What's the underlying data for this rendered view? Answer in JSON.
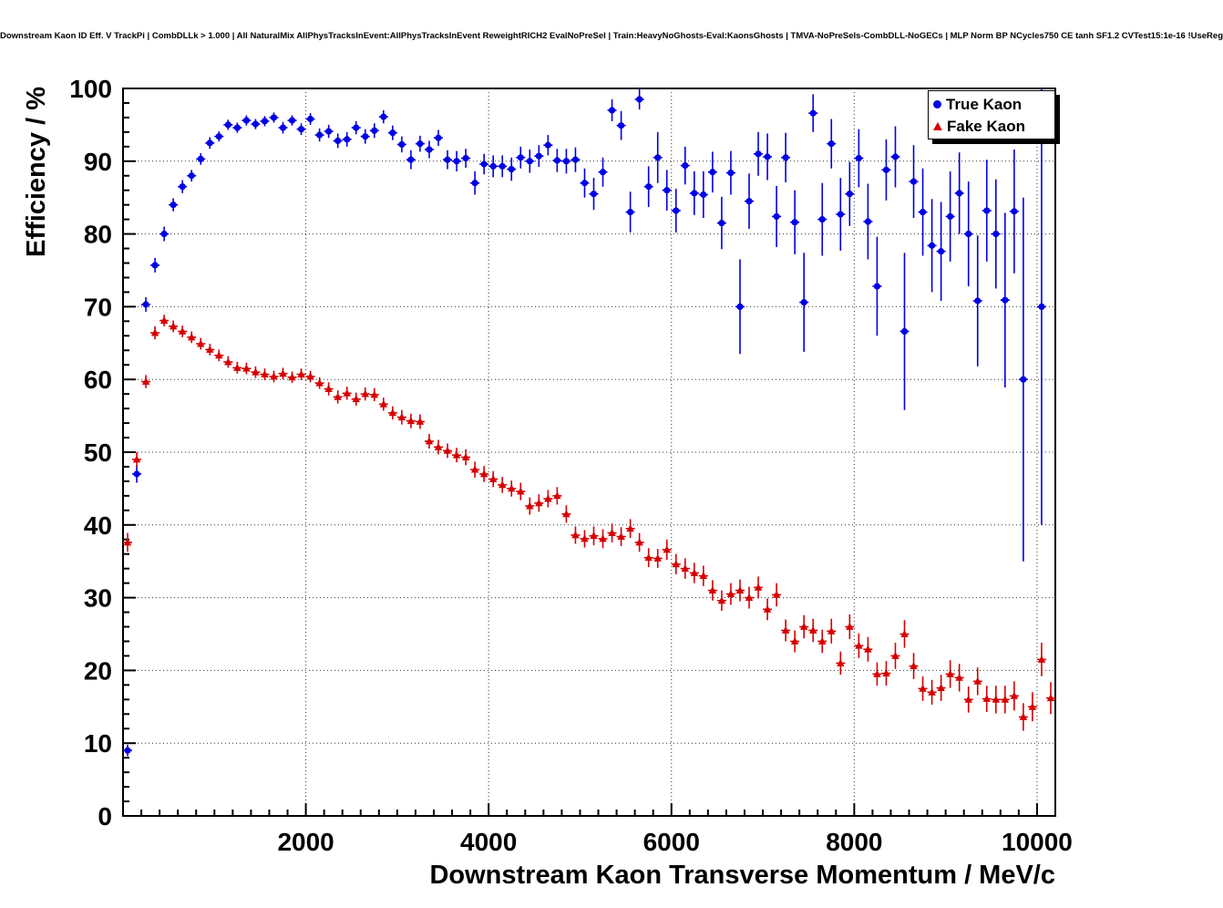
{
  "chart_data": {
    "type": "scatter",
    "title": "Downstream Kaon ID Eff. V TrackPi | CombDLLk > 1.000 | All NaturalMix AllPhysTracksInEvent:AllPhysTracksInEvent ReweightRICH2 EvalNoPreSel | Train:HeavyNoGhosts-Eval:KaonsGhosts | TMVA-NoPreSels-CombDLL-NoGECs | MLP Norm BP NCycles750 CE tanh SF1.2 CVTest15:1e-16 !UseReg",
    "xlabel": "Downstream Kaon Transverse Momentum / MeV/c",
    "ylabel": "Efficiency / %",
    "xlim": [
      0,
      10200
    ],
    "ylim": [
      0,
      100
    ],
    "x_ticks": [
      2000,
      4000,
      6000,
      8000,
      10000
    ],
    "y_ticks": [
      0,
      10,
      20,
      30,
      40,
      50,
      60,
      70,
      80,
      90,
      100
    ],
    "grid": true,
    "legend_position": "top-right",
    "series": [
      {
        "name": "True Kaon",
        "color": "#0000e6",
        "marker": "circle",
        "points": [
          [
            50,
            9.0,
            0.8
          ],
          [
            150,
            47.0,
            1.2
          ],
          [
            250,
            70.3,
            1.0
          ],
          [
            350,
            75.7,
            1.0
          ],
          [
            450,
            80.0,
            1.0
          ],
          [
            550,
            84.0,
            0.9
          ],
          [
            650,
            86.5,
            0.9
          ],
          [
            750,
            88.0,
            0.8
          ],
          [
            850,
            90.3,
            0.8
          ],
          [
            950,
            92.5,
            0.8
          ],
          [
            1050,
            93.4,
            0.7
          ],
          [
            1150,
            95.0,
            0.7
          ],
          [
            1250,
            94.6,
            0.7
          ],
          [
            1350,
            95.6,
            0.7
          ],
          [
            1450,
            95.1,
            0.7
          ],
          [
            1550,
            95.5,
            0.7
          ],
          [
            1650,
            96.0,
            0.7
          ],
          [
            1750,
            94.6,
            0.8
          ],
          [
            1850,
            95.6,
            0.7
          ],
          [
            1950,
            94.4,
            0.8
          ],
          [
            2050,
            95.8,
            0.8
          ],
          [
            2150,
            93.6,
            0.9
          ],
          [
            2250,
            94.1,
            0.9
          ],
          [
            2350,
            92.8,
            1.0
          ],
          [
            2450,
            93.0,
            1.0
          ],
          [
            2550,
            94.6,
            0.9
          ],
          [
            2650,
            93.4,
            1.0
          ],
          [
            2750,
            94.2,
            1.0
          ],
          [
            2850,
            96.1,
            0.9
          ],
          [
            2950,
            93.9,
            1.0
          ],
          [
            3050,
            92.3,
            1.1
          ],
          [
            3150,
            90.2,
            1.3
          ],
          [
            3250,
            92.4,
            1.1
          ],
          [
            3350,
            91.6,
            1.2
          ],
          [
            3450,
            93.2,
            1.1
          ],
          [
            3550,
            90.2,
            1.3
          ],
          [
            3650,
            90.0,
            1.4
          ],
          [
            3750,
            90.4,
            1.3
          ],
          [
            3850,
            87.0,
            1.6
          ],
          [
            3950,
            89.6,
            1.4
          ],
          [
            4050,
            89.3,
            1.5
          ],
          [
            4150,
            89.3,
            1.5
          ],
          [
            4250,
            88.9,
            1.6
          ],
          [
            4350,
            90.5,
            1.5
          ],
          [
            4450,
            90.0,
            1.6
          ],
          [
            4550,
            90.7,
            1.5
          ],
          [
            4650,
            92.2,
            1.4
          ],
          [
            4750,
            90.1,
            1.6
          ],
          [
            4850,
            90.0,
            1.7
          ],
          [
            4950,
            90.2,
            1.7
          ],
          [
            5050,
            87.0,
            2.0
          ],
          [
            5150,
            85.5,
            2.2
          ],
          [
            5250,
            88.5,
            2.0
          ],
          [
            5350,
            97.0,
            1.5
          ],
          [
            5450,
            94.9,
            2.0
          ],
          [
            5550,
            83.0,
            2.8
          ],
          [
            5650,
            98.5,
            1.4
          ],
          [
            5750,
            86.5,
            2.8
          ],
          [
            5850,
            90.5,
            3.5
          ],
          [
            5950,
            86.0,
            2.8
          ],
          [
            6050,
            83.2,
            3.0
          ],
          [
            6150,
            89.4,
            2.6
          ],
          [
            6250,
            85.6,
            3.0
          ],
          [
            6350,
            85.4,
            3.2
          ],
          [
            6450,
            88.5,
            2.8
          ],
          [
            6550,
            81.5,
            3.6
          ],
          [
            6650,
            88.4,
            3.0
          ],
          [
            6750,
            70.0,
            6.5
          ],
          [
            6850,
            84.5,
            3.8
          ],
          [
            6950,
            91.0,
            3.0
          ],
          [
            7050,
            90.6,
            3.2
          ],
          [
            7150,
            82.4,
            4.2
          ],
          [
            7250,
            90.5,
            3.4
          ],
          [
            7350,
            81.6,
            4.4
          ],
          [
            7450,
            70.6,
            6.8
          ],
          [
            7550,
            96.6,
            2.6
          ],
          [
            7650,
            82.0,
            5.0
          ],
          [
            7750,
            92.4,
            3.4
          ],
          [
            7850,
            82.7,
            5.0
          ],
          [
            7950,
            85.5,
            4.4
          ],
          [
            8050,
            90.4,
            4.0
          ],
          [
            8150,
            81.7,
            5.2
          ],
          [
            8250,
            72.8,
            6.8
          ],
          [
            8350,
            88.8,
            4.2
          ],
          [
            8450,
            90.6,
            4.2
          ],
          [
            8550,
            66.6,
            10.8
          ],
          [
            8650,
            87.2,
            5.0
          ],
          [
            8750,
            83.0,
            6.0
          ],
          [
            8850,
            78.4,
            6.4
          ],
          [
            8950,
            77.6,
            6.8
          ],
          [
            9050,
            82.4,
            6.2
          ],
          [
            9150,
            85.6,
            5.6
          ],
          [
            9250,
            80.0,
            7.2
          ],
          [
            9350,
            70.8,
            9.0
          ],
          [
            9450,
            83.2,
            7.0
          ],
          [
            9550,
            80.0,
            7.5
          ],
          [
            9650,
            70.9,
            12.0
          ],
          [
            9750,
            83.1,
            8.5
          ],
          [
            9850,
            60.0,
            25.0
          ],
          [
            10050,
            70.0,
            30.0
          ]
        ]
      },
      {
        "name": "Fake Kaon",
        "color": "#d60000",
        "marker": "triangle",
        "points": [
          [
            50,
            37.6,
            1.3
          ],
          [
            150,
            49.0,
            1.0
          ],
          [
            250,
            59.7,
            0.9
          ],
          [
            350,
            66.4,
            0.9
          ],
          [
            450,
            68.1,
            0.8
          ],
          [
            550,
            67.3,
            0.8
          ],
          [
            650,
            66.6,
            0.8
          ],
          [
            750,
            65.8,
            0.8
          ],
          [
            850,
            64.9,
            0.8
          ],
          [
            950,
            64.1,
            0.8
          ],
          [
            1050,
            63.3,
            0.8
          ],
          [
            1150,
            62.4,
            0.8
          ],
          [
            1250,
            61.6,
            0.8
          ],
          [
            1350,
            61.5,
            0.8
          ],
          [
            1450,
            61.0,
            0.8
          ],
          [
            1550,
            60.7,
            0.8
          ],
          [
            1650,
            60.4,
            0.8
          ],
          [
            1750,
            60.8,
            0.8
          ],
          [
            1850,
            60.3,
            0.8
          ],
          [
            1950,
            60.7,
            0.8
          ],
          [
            2050,
            60.4,
            0.8
          ],
          [
            2150,
            59.5,
            0.8
          ],
          [
            2250,
            58.7,
            0.9
          ],
          [
            2350,
            57.6,
            0.9
          ],
          [
            2450,
            58.1,
            0.9
          ],
          [
            2550,
            57.3,
            0.9
          ],
          [
            2650,
            58.0,
            0.9
          ],
          [
            2750,
            57.9,
            0.9
          ],
          [
            2850,
            56.6,
            0.9
          ],
          [
            2950,
            55.4,
            0.9
          ],
          [
            3050,
            54.8,
            1.0
          ],
          [
            3150,
            54.3,
            1.0
          ],
          [
            3250,
            54.2,
            1.0
          ],
          [
            3350,
            51.5,
            1.0
          ],
          [
            3450,
            50.7,
            1.0
          ],
          [
            3550,
            50.2,
            1.0
          ],
          [
            3650,
            49.6,
            1.0
          ],
          [
            3750,
            49.3,
            1.1
          ],
          [
            3850,
            47.6,
            1.1
          ],
          [
            3950,
            47.0,
            1.1
          ],
          [
            4050,
            46.3,
            1.1
          ],
          [
            4150,
            45.5,
            1.1
          ],
          [
            4250,
            45.0,
            1.1
          ],
          [
            4350,
            44.6,
            1.2
          ],
          [
            4450,
            42.6,
            1.2
          ],
          [
            4550,
            43.0,
            1.2
          ],
          [
            4650,
            43.6,
            1.2
          ],
          [
            4750,
            44.0,
            1.2
          ],
          [
            4850,
            41.5,
            1.2
          ],
          [
            4950,
            38.6,
            1.2
          ],
          [
            5050,
            38.1,
            1.2
          ],
          [
            5150,
            38.5,
            1.3
          ],
          [
            5250,
            38.1,
            1.3
          ],
          [
            5350,
            38.9,
            1.3
          ],
          [
            5450,
            38.4,
            1.3
          ],
          [
            5550,
            39.5,
            1.3
          ],
          [
            5650,
            37.6,
            1.3
          ],
          [
            5750,
            35.5,
            1.3
          ],
          [
            5850,
            35.4,
            1.3
          ],
          [
            5950,
            36.6,
            1.4
          ],
          [
            6050,
            34.6,
            1.4
          ],
          [
            6150,
            34.0,
            1.4
          ],
          [
            6250,
            33.4,
            1.4
          ],
          [
            6350,
            33.0,
            1.4
          ],
          [
            6450,
            31.0,
            1.4
          ],
          [
            6550,
            29.6,
            1.4
          ],
          [
            6650,
            30.5,
            1.5
          ],
          [
            6750,
            31.0,
            1.5
          ],
          [
            6850,
            30.0,
            1.5
          ],
          [
            6950,
            31.4,
            1.5
          ],
          [
            7050,
            28.4,
            1.5
          ],
          [
            7150,
            30.4,
            1.6
          ],
          [
            7250,
            25.5,
            1.5
          ],
          [
            7350,
            24.0,
            1.5
          ],
          [
            7450,
            26.0,
            1.6
          ],
          [
            7550,
            25.5,
            1.6
          ],
          [
            7650,
            24.0,
            1.6
          ],
          [
            7750,
            25.4,
            1.7
          ],
          [
            7850,
            21.0,
            1.6
          ],
          [
            7950,
            26.0,
            1.7
          ],
          [
            8050,
            23.4,
            1.7
          ],
          [
            8150,
            22.9,
            1.7
          ],
          [
            8250,
            19.5,
            1.6
          ],
          [
            8350,
            19.6,
            1.7
          ],
          [
            8450,
            22.0,
            1.8
          ],
          [
            8550,
            25.0,
            1.9
          ],
          [
            8650,
            20.6,
            1.8
          ],
          [
            8750,
            17.5,
            1.7
          ],
          [
            8850,
            17.0,
            1.7
          ],
          [
            8950,
            17.6,
            1.8
          ],
          [
            9050,
            19.5,
            1.9
          ],
          [
            9150,
            19.0,
            1.9
          ],
          [
            9250,
            16.0,
            1.8
          ],
          [
            9350,
            18.5,
            1.9
          ],
          [
            9450,
            16.1,
            1.8
          ],
          [
            9550,
            16.0,
            1.9
          ],
          [
            9650,
            16.0,
            1.9
          ],
          [
            9750,
            16.5,
            2.0
          ],
          [
            9850,
            13.6,
            1.9
          ],
          [
            9950,
            15.0,
            2.0
          ],
          [
            10050,
            21.5,
            2.3
          ],
          [
            10150,
            16.2,
            2.2
          ]
        ]
      }
    ]
  }
}
